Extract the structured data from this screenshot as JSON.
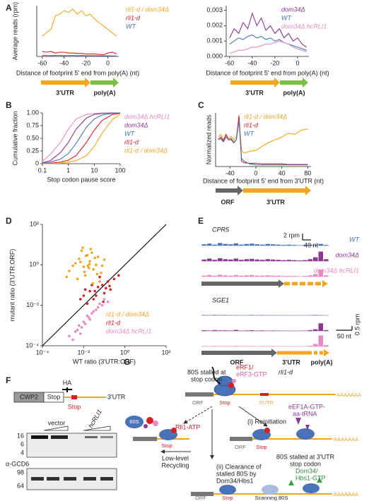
{
  "panel_labels": [
    "A",
    "B",
    "C",
    "D",
    "E",
    "F",
    "G"
  ],
  "chart_data": [
    {
      "type": "line",
      "ylabel": "Average reads (rpm)",
      "xlabel": "Distance of footprint 5' end from poly(A) (nt)",
      "xlim": [
        -65,
        10
      ],
      "xticks": [
        -60,
        -40,
        -20,
        0
      ],
      "ylim": [
        0,
        0.03
      ],
      "x": [
        -60,
        -56,
        -52,
        -48,
        -44,
        -40,
        -36,
        -32,
        -28,
        -24,
        -20,
        -16,
        -12,
        -8,
        -4,
        0,
        4,
        8
      ],
      "series": [
        {
          "name": "rli1-d / dom34Δ",
          "color": "#f2a51f",
          "values": [
            0.012,
            0.014,
            0.016,
            0.024,
            0.025,
            0.027,
            0.026,
            0.028,
            0.025,
            0.027,
            0.024,
            0.025,
            0.022,
            0.02,
            0.018,
            0.016,
            0.014,
            0.012
          ]
        },
        {
          "name": "rli1-d",
          "color": "#d62027",
          "values": [
            0.003,
            0.0025,
            0.003,
            0.002,
            0.0025,
            0.0025,
            0.002,
            0.002,
            0.0018,
            0.0018,
            0.0015,
            0.0015,
            0.0015,
            0.0012,
            0.001,
            0.002,
            0.0025,
            0.0015
          ]
        },
        {
          "name": "WT",
          "color": "#4a72b8",
          "values": [
            0.0006,
            0.0006,
            0.0005,
            0.0006,
            0.0006,
            0.0005,
            0.0006,
            0.0006,
            0.0005,
            0.0006,
            0.0005,
            0.0005,
            0.0005,
            0.0004,
            0.0004,
            0.0004,
            0.0003,
            0.0003
          ]
        }
      ],
      "annotations": [
        "3'UTR",
        "poly(A)"
      ]
    },
    {
      "type": "line",
      "xlabel": "Distance of footprint 5' end from poly(A) (nt)",
      "xlim": [
        -63,
        10
      ],
      "xticks": [
        -60,
        -40,
        -20,
        0
      ],
      "ylim": [
        0,
        0.0033
      ],
      "yticks": [
        {
          "value": 0,
          "label": "0.000"
        },
        0.001,
        0.002,
        0.003
      ],
      "x": [
        -60,
        -56,
        -52,
        -48,
        -44,
        -40,
        -36,
        -32,
        -28,
        -24,
        -20,
        -16,
        -12,
        -8,
        -4,
        0,
        4,
        8
      ],
      "series": [
        {
          "name": "dom34Δ",
          "color": "#8b3a8f",
          "values": [
            0.0012,
            0.0018,
            0.0015,
            0.0022,
            0.0018,
            0.0028,
            0.002,
            0.0025,
            0.0017,
            0.002,
            0.0015,
            0.0018,
            0.0012,
            0.0015,
            0.001,
            0.0012,
            0.0008,
            0.0006
          ]
        },
        {
          "name": "WT",
          "color": "#4a72b8",
          "values": [
            0.0008,
            0.001,
            0.0012,
            0.0011,
            0.0013,
            0.0014,
            0.0012,
            0.0013,
            0.0011,
            0.0012,
            0.001,
            0.0011,
            0.0009,
            0.0008,
            0.0007,
            0.0006,
            0.0005,
            0.0004
          ]
        },
        {
          "name": "dom34Δ hcRLI1",
          "color": "#e58bbd",
          "values": [
            0.0002,
            0.0003,
            0.0004,
            0.0004,
            0.0005,
            0.0006,
            0.0006,
            0.0007,
            0.0008,
            0.0008,
            0.0009,
            0.001,
            0.0009,
            0.0008,
            0.0006,
            0.0005,
            0.0004,
            0.0003
          ]
        }
      ],
      "annotations": [
        "3'UTR",
        "poly(A)"
      ]
    },
    {
      "type": "line",
      "xscale": "log",
      "ylabel": "Cumulative fraction",
      "xlabel": "Stop codon pause score",
      "xlim": [
        0.1,
        100
      ],
      "xticks": [
        0.1,
        1,
        10,
        100
      ],
      "ylim": [
        0,
        1
      ],
      "yticks": [
        0,
        0.25,
        {
          "value": 0.5,
          "label": "0.50"
        },
        0.75,
        {
          "value": 1,
          "label": "1.00"
        }
      ],
      "x": [
        0.1,
        0.2,
        0.5,
        1,
        2,
        5,
        10,
        20,
        50,
        100
      ],
      "series": [
        {
          "name": "dom34Δ hcRLI1",
          "color": "#e58bbd",
          "values": [
            0.05,
            0.18,
            0.42,
            0.68,
            0.88,
            0.97,
            0.99,
            1,
            1,
            1
          ]
        },
        {
          "name": "dom34Δ",
          "color": "#8b3a8f",
          "values": [
            0.02,
            0.06,
            0.22,
            0.42,
            0.68,
            0.9,
            0.97,
            0.99,
            1,
            1
          ]
        },
        {
          "name": "WT",
          "color": "#4a72b8",
          "values": [
            0.01,
            0.03,
            0.09,
            0.2,
            0.4,
            0.72,
            0.88,
            0.96,
            0.99,
            1
          ]
        },
        {
          "name": "rli1-d",
          "color": "#d62027",
          "values": [
            0,
            0.01,
            0.03,
            0.07,
            0.16,
            0.42,
            0.66,
            0.85,
            0.97,
            0.99
          ]
        },
        {
          "name": "rli1-d / dom34Δ",
          "color": "#f2a51f",
          "values": [
            0,
            0,
            0.01,
            0.03,
            0.06,
            0.16,
            0.34,
            0.6,
            0.87,
            0.97
          ]
        }
      ]
    },
    {
      "type": "line",
      "ylabel": "Normalized reads",
      "xlabel": "Distance of footprint 5' end from 3'UTR (nt)",
      "xlim": [
        -62,
        85
      ],
      "xticks": [
        -40,
        0,
        40,
        80
      ],
      "ylim": [
        0,
        1
      ],
      "x": [
        -58,
        -54,
        -50,
        -46,
        -42,
        -38,
        -34,
        -30,
        -26,
        -22,
        -18,
        -10,
        0,
        10,
        20,
        30,
        40,
        50,
        60,
        70,
        80
      ],
      "series": [
        {
          "name": "rli1-d / dom34Δ",
          "color": "#f2a51f",
          "values": [
            0.55,
            0.6,
            0.5,
            0.58,
            0.52,
            0.56,
            0.5,
            0.55,
            0.9,
            0.3,
            0.25,
            0.28,
            0.3,
            0.38,
            0.45,
            0.5,
            0.55,
            0.62,
            0.6,
            0.68,
            0.7
          ]
        },
        {
          "name": "rli1-d",
          "color": "#d62027",
          "values": [
            0.5,
            0.55,
            0.48,
            0.6,
            0.5,
            0.52,
            0.45,
            0.5,
            0.95,
            0.1,
            0.07,
            0.06,
            0.06,
            0.05,
            0.05,
            0.05,
            0.05,
            0.04,
            0.04,
            0.04,
            0.04
          ]
        },
        {
          "name": "WT",
          "color": "#4a72b8",
          "values": [
            0.5,
            0.52,
            0.46,
            0.55,
            0.5,
            0.5,
            0.44,
            0.5,
            0.85,
            0.15,
            0.1,
            0.05,
            0.03,
            0.03,
            0.03,
            0.03,
            0.03,
            0.03,
            0.03,
            0.03,
            0.03
          ]
        }
      ],
      "annotations": [
        "ORF",
        "3'UTR"
      ]
    },
    {
      "type": "scatter",
      "xscale": "log",
      "yscale": "log",
      "diagonal": true,
      "xlabel": "WT ratio (3'UTR:ORF)",
      "ylabel": "mutant ratio (3'UTR:ORF)",
      "xlim": [
        0.0001,
        100
      ],
      "ylim": [
        0.0001,
        100
      ],
      "xticks": [
        {
          "value": 0.0001,
          "label": "10⁻⁴"
        },
        {
          "value": 0.01,
          "label": "10⁻²"
        },
        {
          "value": 1,
          "label": "10⁰"
        },
        {
          "value": 100,
          "label": "10²"
        }
      ],
      "yticks": [
        {
          "value": 0.0001,
          "label": "10⁻⁴"
        },
        {
          "value": 0.01,
          "label": "10⁻²"
        },
        {
          "value": 1,
          "label": "10⁰"
        },
        {
          "value": 100,
          "label": "10²"
        }
      ],
      "series": [
        {
          "name": "rli1-d / dom34Δ",
          "color": "#f2a51f",
          "x": [
            0.002,
            0.004,
            0.006,
            0.01,
            0.015,
            0.02,
            0.03,
            0.05,
            0.008,
            0.012,
            0.003,
            0.025,
            0.04,
            0.07,
            0.1,
            0.005,
            0.009,
            0.018,
            0.035,
            0.06,
            0.007,
            0.011,
            0.016,
            0.022,
            0.045,
            0.013,
            0.0015,
            0.08,
            0.028,
            0.019
          ],
          "values": [
            0.5,
            1.2,
            2,
            0.8,
            3,
            1.5,
            0.6,
            2.5,
            5,
            0.3,
            0.9,
            4,
            1,
            0.4,
            1.8,
            0.2,
            7,
            0.7,
            2.2,
            0.15,
            1.4,
            0.45,
            0.9,
            6,
            0.35,
            2.8,
            0.25,
            0.9,
            0.12,
            1.1
          ]
        },
        {
          "name": "rli1-d",
          "color": "#d62027",
          "x": [
            0.01,
            0.02,
            0.03,
            0.05,
            0.08,
            0.1,
            0.15,
            0.2,
            0.3,
            0.015,
            0.04,
            0.06,
            0.12,
            0.025,
            0.007,
            0.09,
            0.18,
            0.035,
            0.5,
            0.012
          ],
          "values": [
            0.03,
            0.05,
            0.02,
            0.08,
            0.1,
            0.04,
            0.15,
            0.06,
            0.2,
            0.012,
            0.03,
            0.25,
            0.07,
            0.1,
            0.02,
            0.015,
            0.09,
            0.05,
            0.3,
            0.06
          ]
        },
        {
          "name": "dom34Δ hcRLI1",
          "color": "#e58bbd",
          "x": [
            0.002,
            0.004,
            0.006,
            0.01,
            0.015,
            0.02,
            0.03,
            0.05,
            0.08,
            0.1,
            0.003,
            0.008,
            0.012,
            0.025,
            0.04,
            0.005,
            0.018,
            0.06,
            0.15,
            0.007
          ],
          "values": [
            0.0003,
            0.0005,
            0.001,
            0.0015,
            0.003,
            0.002,
            0.005,
            0.008,
            0.01,
            0.02,
            0.0002,
            0.0008,
            0.0012,
            0.004,
            0.006,
            0.0006,
            0.0025,
            0.012,
            0.015,
            0.0004
          ]
        }
      ]
    },
    {
      "type": "track",
      "title": "CPR5",
      "ylim": [
        0,
        4
      ],
      "xlim": [
        0,
        600
      ],
      "scale_bar": {
        "value": 2,
        "label": "2 rpm"
      },
      "x_scale_bar": {
        "value": 40,
        "label": "40 nt"
      },
      "series": [
        {
          "name": "WT",
          "color": "#4a72b8",
          "values": [
            0.4,
            0.6,
            0.3,
            0.8,
            0.5,
            0.4,
            0.7,
            0.3,
            0.5,
            0.6,
            0.4,
            0.3,
            0.5,
            0.4,
            0.3,
            0.2,
            0.3,
            0.2,
            0.1,
            0.2,
            0.3,
            0.2,
            0.5,
            0.2
          ]
        },
        {
          "name": "dom34Δ",
          "color": "#8b3a8f",
          "values": [
            0.5,
            0.8,
            0.4,
            0.9,
            0.6,
            0.5,
            0.8,
            0.4,
            0.6,
            0.7,
            0.5,
            0.4,
            0.6,
            0.5,
            0.4,
            0.3,
            0.4,
            0.3,
            0.2,
            0.3,
            0.6,
            1.2,
            3.0,
            0.6
          ]
        },
        {
          "name": "dom34Δ hcRLI1",
          "color": "#e58bbd",
          "values": [
            0.3,
            0.5,
            0.3,
            0.6,
            0.4,
            0.3,
            0.5,
            0.3,
            0.4,
            0.5,
            0.3,
            0.3,
            0.4,
            0.3,
            0.3,
            0.2,
            0.2,
            0.2,
            0.1,
            0.2,
            0.4,
            0.8,
            2.2,
            0.4
          ]
        }
      ]
    },
    {
      "type": "track",
      "title": "SGE1",
      "ylim": [
        0,
        1.5
      ],
      "xlim": [
        0,
        400
      ],
      "scale_bar": {
        "value": 0.5,
        "label": "0.5 rpm"
      },
      "x_scale_bar": {
        "value": 50,
        "label": "50 nt"
      },
      "series": [
        {
          "color": "#4a72b8",
          "values": [
            0.05,
            0.03,
            0.06,
            0.04,
            0.05,
            0.03,
            0.04,
            0.02,
            0.03,
            0.05,
            0.03,
            0.04,
            0.02,
            0.03,
            0.02,
            0.02,
            0.01,
            0.02,
            0.01,
            0.02,
            0.03,
            0.05,
            0.04,
            0.01
          ]
        },
        {
          "color": "#8b3a8f",
          "values": [
            0.08,
            0.05,
            0.1,
            0.06,
            0.07,
            0.05,
            0.12,
            0.04,
            0.06,
            0.08,
            0.05,
            0.06,
            0.04,
            0.05,
            0.04,
            0.03,
            0.02,
            0.03,
            0.02,
            0.04,
            0.1,
            0.2,
            0.9,
            0.1
          ]
        },
        {
          "color": "#e58bbd",
          "values": [
            0.05,
            0.04,
            0.06,
            0.04,
            0.05,
            0.03,
            0.06,
            0.03,
            0.04,
            0.05,
            0.03,
            0.04,
            0.03,
            0.04,
            0.03,
            0.02,
            0.02,
            0.02,
            0.01,
            0.03,
            0.08,
            0.3,
            1.3,
            0.15
          ]
        }
      ],
      "annotations": [
        "ORF",
        "3'UTR",
        "poly(A)"
      ]
    }
  ],
  "figure_F": {
    "tag": "HA",
    "construct": [
      "CWP2",
      "Stop",
      "3'UTR"
    ],
    "stop_marker": "Stop",
    "lanes": [
      "vector",
      "hcRLI1"
    ],
    "markers_top": [
      16,
      6,
      4
    ],
    "markers_bottom": [
      98,
      64
    ],
    "loading_label": "α-GCD6"
  },
  "figure_G": {
    "stalled": [
      "80S stalled at",
      "stop codon"
    ],
    "erf": [
      "eRF1/",
      "eRF3-GTP"
    ],
    "strain": "rli1-d",
    "top_mrna": [
      "ORF",
      "Stop",
      "3'UTR",
      "AAAAAAA"
    ],
    "rli1": "Rli1-ATP",
    "subunit": "60S",
    "left_stop": "Stop",
    "recycling": [
      "Low-level",
      "Recycling"
    ],
    "reinitiation": "(i) Reinitiation",
    "eef1a": [
      "eEF1A-GTP-",
      "aa-tRNA"
    ],
    "right_mrna": [
      "ORF",
      "Stop",
      "AAAAAAA"
    ],
    "stalled_utr": [
      "80S stalled at 3'UTR",
      "stop codon"
    ],
    "clearance": [
      "(ii) Clearance of",
      "stalled 80S by",
      "Dom34/Hbs1"
    ],
    "dom34": [
      "Dom34/",
      "Hbs1-GTP"
    ],
    "bottom_mrna": [
      "ORF",
      "Stop",
      "AAAAAAA"
    ],
    "scanning": "Scanning 80S"
  }
}
